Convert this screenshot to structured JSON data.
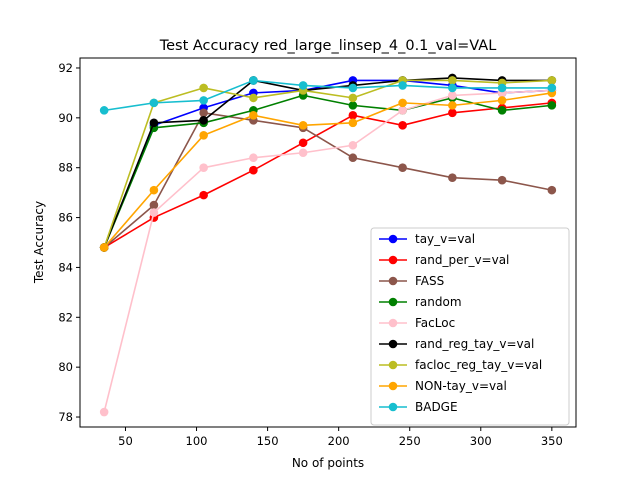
{
  "chart_data": {
    "type": "line",
    "title": "Test Accuracy red_large_linsep_4_0.1_val=VAL",
    "xlabel": "No of points",
    "ylabel": "Test Accuracy",
    "xlim": [
      18,
      367
    ],
    "ylim": [
      77.6,
      92.4
    ],
    "xticks": [
      50,
      100,
      150,
      200,
      250,
      300,
      350
    ],
    "yticks": [
      78,
      80,
      82,
      84,
      86,
      88,
      90,
      92
    ],
    "grid": false,
    "legend_position": "lower-right",
    "x": [
      35,
      70,
      105,
      140,
      175,
      210,
      245,
      280,
      315,
      350
    ],
    "series": [
      {
        "name": "tay_v=val",
        "color": "#0000ff",
        "values": [
          84.8,
          89.7,
          90.4,
          91.0,
          91.1,
          91.5,
          91.5,
          91.3,
          91.0,
          91.1
        ]
      },
      {
        "name": "rand_per_v=val",
        "color": "#ff0000",
        "values": [
          84.8,
          86.0,
          86.9,
          87.9,
          89.0,
          90.1,
          89.7,
          90.2,
          90.4,
          90.6
        ]
      },
      {
        "name": "FASS",
        "color": "#8c564b",
        "values": [
          84.8,
          86.5,
          90.2,
          89.9,
          89.6,
          88.4,
          88.0,
          87.6,
          87.5,
          87.1
        ]
      },
      {
        "name": "random",
        "color": "#008000",
        "values": [
          84.8,
          89.6,
          89.8,
          90.3,
          90.9,
          90.5,
          90.3,
          90.8,
          90.3,
          90.5
        ]
      },
      {
        "name": "FacLoc",
        "color": "#ffc0cb",
        "values": [
          78.2,
          86.2,
          88.0,
          88.4,
          88.6,
          88.9,
          90.3,
          90.9,
          91.0,
          91.1
        ]
      },
      {
        "name": "rand_reg_tay_v=val",
        "color": "#000000",
        "values": [
          84.8,
          89.8,
          89.9,
          91.5,
          91.1,
          91.3,
          91.5,
          91.6,
          91.5,
          91.5
        ]
      },
      {
        "name": "facloc_reg_tay_v=val",
        "color": "#bcbd22",
        "values": [
          84.8,
          90.6,
          91.2,
          90.8,
          91.1,
          90.8,
          91.5,
          91.5,
          91.4,
          91.5
        ]
      },
      {
        "name": "NON-tay_v=val",
        "color": "#ffa500",
        "values": [
          84.8,
          87.1,
          89.3,
          90.1,
          89.7,
          89.8,
          90.6,
          90.5,
          90.7,
          91.0
        ]
      },
      {
        "name": "BADGE",
        "color": "#17becf",
        "values": [
          90.3,
          90.6,
          90.7,
          91.5,
          91.3,
          91.2,
          91.3,
          91.2,
          91.2,
          91.2
        ]
      }
    ]
  }
}
